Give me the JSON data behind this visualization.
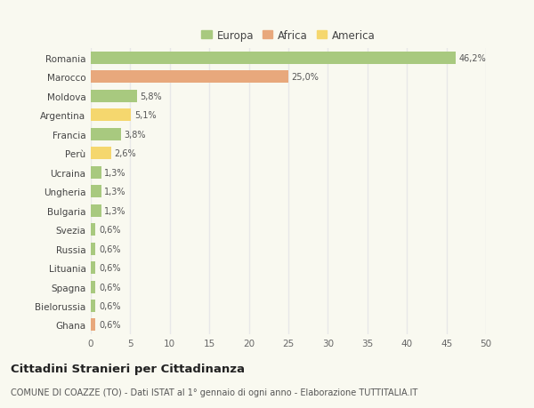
{
  "categories": [
    "Romania",
    "Marocco",
    "Moldova",
    "Argentina",
    "Francia",
    "Perù",
    "Ucraina",
    "Ungheria",
    "Bulgaria",
    "Svezia",
    "Russia",
    "Lituania",
    "Spagna",
    "Bielorussia",
    "Ghana"
  ],
  "values": [
    46.2,
    25.0,
    5.8,
    5.1,
    3.8,
    2.6,
    1.3,
    1.3,
    1.3,
    0.6,
    0.6,
    0.6,
    0.6,
    0.6,
    0.6
  ],
  "labels": [
    "46,2%",
    "25,0%",
    "5,8%",
    "5,1%",
    "3,8%",
    "2,6%",
    "1,3%",
    "1,3%",
    "1,3%",
    "0,6%",
    "0,6%",
    "0,6%",
    "0,6%",
    "0,6%",
    "0,6%"
  ],
  "continents": [
    "Europa",
    "Africa",
    "Europa",
    "America",
    "Europa",
    "America",
    "Europa",
    "Europa",
    "Europa",
    "Europa",
    "Europa",
    "Europa",
    "Europa",
    "Europa",
    "Africa"
  ],
  "colors": {
    "Europa": "#a8c97f",
    "Africa": "#e8a87c",
    "America": "#f5d76e"
  },
  "legend_entries": [
    "Europa",
    "Africa",
    "America"
  ],
  "xlim": [
    0,
    50
  ],
  "xticks": [
    0,
    5,
    10,
    15,
    20,
    25,
    30,
    35,
    40,
    45,
    50
  ],
  "title": "Cittadini Stranieri per Cittadinanza",
  "subtitle": "COMUNE DI COAZZE (TO) - Dati ISTAT al 1° gennaio di ogni anno - Elaborazione TUTTITALIA.IT",
  "background_color": "#f9f9f0",
  "grid_color": "#e8e8e8",
  "bar_height": 0.65
}
